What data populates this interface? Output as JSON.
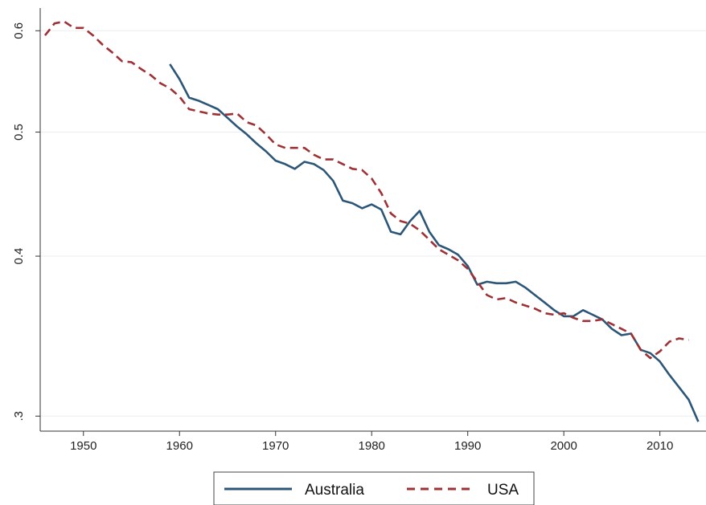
{
  "chart_data": {
    "type": "line",
    "title": "",
    "xlabel": "",
    "ylabel": "",
    "y_scale": "log",
    "xlim": [
      1945.5,
      2014.8
    ],
    "ylim": [
      0.292,
      0.625
    ],
    "x_ticks": [
      1950,
      1960,
      1970,
      1980,
      1990,
      2000,
      2010
    ],
    "x_tick_labels": [
      "1950",
      "1960",
      "1970",
      "1980",
      "1990",
      "2000",
      "2010"
    ],
    "y_ticks": [
      0.3,
      0.4,
      0.5,
      0.6
    ],
    "y_tick_labels": [
      ".3",
      "0.4",
      "0.5",
      "0.6"
    ],
    "grid": "horizontal",
    "legend_position": "bottom",
    "series": [
      {
        "name": "Australia",
        "color": "#2c5677",
        "style": "solid",
        "x": [
          1959,
          1960,
          1961,
          1962,
          1963,
          1964,
          1965,
          1966,
          1967,
          1968,
          1969,
          1970,
          1971,
          1972,
          1973,
          1974,
          1975,
          1976,
          1977,
          1978,
          1979,
          1980,
          1981,
          1982,
          1983,
          1984,
          1985,
          1986,
          1987,
          1988,
          1989,
          1990,
          1991,
          1992,
          1993,
          1994,
          1995,
          1996,
          1997,
          1998,
          1999,
          2000,
          2001,
          2002,
          2003,
          2004,
          2005,
          2006,
          2007,
          2008,
          2009,
          2010,
          2011,
          2012,
          2013,
          2014
        ],
        "y": [
          0.565,
          0.55,
          0.532,
          0.529,
          0.525,
          0.521,
          0.513,
          0.505,
          0.498,
          0.49,
          0.483,
          0.475,
          0.472,
          0.468,
          0.474,
          0.472,
          0.467,
          0.458,
          0.442,
          0.44,
          0.436,
          0.439,
          0.435,
          0.418,
          0.416,
          0.426,
          0.434,
          0.418,
          0.408,
          0.405,
          0.401,
          0.393,
          0.38,
          0.382,
          0.381,
          0.381,
          0.382,
          0.378,
          0.373,
          0.368,
          0.363,
          0.359,
          0.359,
          0.363,
          0.36,
          0.357,
          0.351,
          0.347,
          0.348,
          0.338,
          0.336,
          0.331,
          0.323,
          0.316,
          0.309,
          0.297
        ]
      },
      {
        "name": "USA",
        "color": "#9e3135",
        "style": "dashed",
        "x": [
          1946,
          1947,
          1948,
          1949,
          1950,
          1951,
          1952,
          1953,
          1954,
          1955,
          1956,
          1957,
          1958,
          1959,
          1960,
          1961,
          1962,
          1963,
          1964,
          1965,
          1966,
          1967,
          1968,
          1969,
          1970,
          1971,
          1972,
          1973,
          1974,
          1975,
          1976,
          1977,
          1978,
          1979,
          1980,
          1981,
          1982,
          1983,
          1984,
          1985,
          1986,
          1987,
          1988,
          1989,
          1990,
          1991,
          1992,
          1993,
          1994,
          1995,
          1996,
          1997,
          1998,
          1999,
          2000,
          2001,
          2002,
          2003,
          2004,
          2005,
          2006,
          2007,
          2008,
          2009,
          2010,
          2011,
          2012,
          2013
        ],
        "y": [
          0.595,
          0.608,
          0.61,
          0.603,
          0.603,
          0.595,
          0.585,
          0.577,
          0.568,
          0.567,
          0.56,
          0.554,
          0.546,
          0.541,
          0.533,
          0.521,
          0.519,
          0.517,
          0.516,
          0.516,
          0.517,
          0.509,
          0.506,
          0.498,
          0.489,
          0.486,
          0.486,
          0.486,
          0.48,
          0.476,
          0.476,
          0.472,
          0.468,
          0.467,
          0.46,
          0.448,
          0.432,
          0.426,
          0.424,
          0.419,
          0.412,
          0.405,
          0.401,
          0.397,
          0.391,
          0.382,
          0.373,
          0.37,
          0.371,
          0.368,
          0.366,
          0.364,
          0.361,
          0.36,
          0.361,
          0.358,
          0.356,
          0.356,
          0.357,
          0.354,
          0.351,
          0.348,
          0.338,
          0.333,
          0.337,
          0.343,
          0.345,
          0.344
        ]
      }
    ]
  }
}
